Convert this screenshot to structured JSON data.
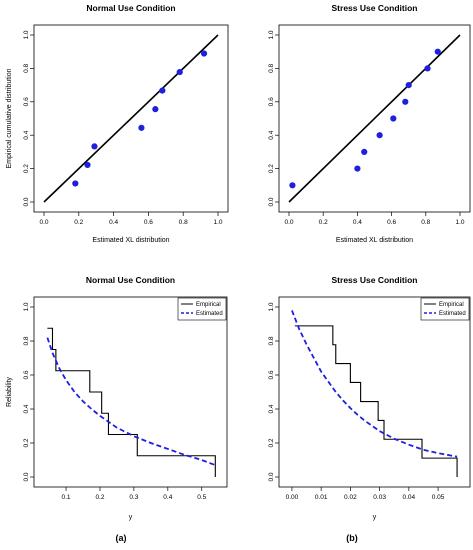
{
  "captions": [
    "(a)",
    "(b)"
  ],
  "chart_data": [
    {
      "type": "scatter",
      "title": "Normal Use Condition",
      "xlabel": "Estimated XL distribution",
      "ylabel": "Empirical cumulative distribution",
      "xlim": [
        0.0,
        1.0
      ],
      "ylim": [
        0.0,
        1.0
      ],
      "xticks": [
        "0.0",
        "0.2",
        "0.4",
        "0.6",
        "0.8",
        "1.0"
      ],
      "yticks": [
        "0.0",
        "0.2",
        "0.4",
        "0.6",
        "0.8",
        "1.0"
      ],
      "reference_line": [
        [
          0,
          0
        ],
        [
          1,
          1
        ]
      ],
      "points": [
        {
          "x": 0.18,
          "y": 0.111
        },
        {
          "x": 0.25,
          "y": 0.222
        },
        {
          "x": 0.29,
          "y": 0.333
        },
        {
          "x": 0.56,
          "y": 0.444
        },
        {
          "x": 0.64,
          "y": 0.556
        },
        {
          "x": 0.68,
          "y": 0.667
        },
        {
          "x": 0.78,
          "y": 0.778
        },
        {
          "x": 0.92,
          "y": 0.889
        }
      ],
      "point_color": "#1f1fe0",
      "grid": false
    },
    {
      "type": "scatter",
      "title": "Stress Use Condition",
      "xlabel": "Estimated XL distribution",
      "ylabel": "",
      "xlim": [
        0.0,
        1.0
      ],
      "ylim": [
        0.0,
        1.0
      ],
      "xticks": [
        "0.0",
        "0.2",
        "0.4",
        "0.6",
        "0.8",
        "1.0"
      ],
      "yticks": [
        "0.0",
        "0.2",
        "0.4",
        "0.6",
        "0.8",
        "1.0"
      ],
      "reference_line": [
        [
          0,
          0
        ],
        [
          1,
          1
        ]
      ],
      "points": [
        {
          "x": 0.02,
          "y": 0.1
        },
        {
          "x": 0.4,
          "y": 0.2
        },
        {
          "x": 0.44,
          "y": 0.3
        },
        {
          "x": 0.53,
          "y": 0.4
        },
        {
          "x": 0.61,
          "y": 0.5
        },
        {
          "x": 0.68,
          "y": 0.6
        },
        {
          "x": 0.7,
          "y": 0.7
        },
        {
          "x": 0.81,
          "y": 0.8
        },
        {
          "x": 0.87,
          "y": 0.9
        }
      ],
      "point_color": "#1f1fe0",
      "grid": false
    },
    {
      "type": "line",
      "title": "Normal Use Condition",
      "xlabel": "y",
      "ylabel": "Reliability",
      "xlim": [
        0.035,
        0.545
      ],
      "ylim": [
        0.0,
        1.0
      ],
      "xticks": [
        0.1,
        0.2,
        0.3,
        0.4,
        0.5
      ],
      "xtick_labels": [
        "0.1",
        "0.2",
        "0.3",
        "0.4",
        "0.5"
      ],
      "yticks": [
        "0.0",
        "0.2",
        "0.4",
        "0.6",
        "0.8",
        "1.0"
      ],
      "legend": {
        "placement": "top-right",
        "entries": [
          "Empirical",
          "Estimated"
        ]
      },
      "series": [
        {
          "name": "Empirical",
          "style": "step",
          "color": "#000000",
          "x": [
            0.045,
            0.06,
            0.07,
            0.17,
            0.205,
            0.225,
            0.31,
            0.54,
            0.54
          ],
          "y": [
            0.875,
            0.75,
            0.625,
            0.5,
            0.375,
            0.25,
            0.125,
            0.125,
            0.0
          ]
        },
        {
          "name": "Estimated",
          "style": "dashed",
          "color": "#1f1fe0",
          "x": [
            0.045,
            0.06,
            0.08,
            0.1,
            0.125,
            0.15,
            0.175,
            0.2,
            0.225,
            0.25,
            0.275,
            0.3,
            0.35,
            0.4,
            0.45,
            0.5,
            0.54
          ],
          "y": [
            0.82,
            0.73,
            0.64,
            0.57,
            0.5,
            0.445,
            0.4,
            0.36,
            0.325,
            0.29,
            0.265,
            0.24,
            0.2,
            0.165,
            0.13,
            0.1,
            0.07
          ]
        }
      ]
    },
    {
      "type": "line",
      "title": "Stress Use Condition",
      "xlabel": "y",
      "ylabel": "",
      "xlim": [
        -0.001,
        0.0575
      ],
      "ylim": [
        0.0,
        1.0
      ],
      "xticks": [
        0.0,
        0.01,
        0.02,
        0.03,
        0.04,
        0.05
      ],
      "xtick_labels": [
        "0.00",
        "0.01",
        "0.02",
        "0.03",
        "0.04",
        "0.05"
      ],
      "yticks": [
        "0.0",
        "0.2",
        "0.4",
        "0.6",
        "0.8",
        "1.0"
      ],
      "legend": {
        "placement": "top-right",
        "entries": [
          "Empirical",
          "Estimated"
        ]
      },
      "series": [
        {
          "name": "Empirical",
          "style": "step",
          "color": "#000000",
          "x": [
            0.001,
            0.014,
            0.015,
            0.02,
            0.0235,
            0.0295,
            0.0315,
            0.0445,
            0.0565,
            0.0565
          ],
          "y": [
            0.889,
            0.778,
            0.667,
            0.556,
            0.444,
            0.333,
            0.222,
            0.111,
            0.111,
            0.0
          ]
        },
        {
          "name": "Estimated",
          "style": "dashed",
          "color": "#1f1fe0",
          "x": [
            0.0,
            0.0025,
            0.005,
            0.0075,
            0.01,
            0.0125,
            0.015,
            0.0175,
            0.02,
            0.0225,
            0.025,
            0.03,
            0.035,
            0.04,
            0.045,
            0.05,
            0.0565
          ],
          "y": [
            0.98,
            0.87,
            0.78,
            0.7,
            0.62,
            0.56,
            0.5,
            0.45,
            0.405,
            0.365,
            0.33,
            0.27,
            0.225,
            0.19,
            0.16,
            0.14,
            0.12
          ]
        }
      ]
    }
  ]
}
